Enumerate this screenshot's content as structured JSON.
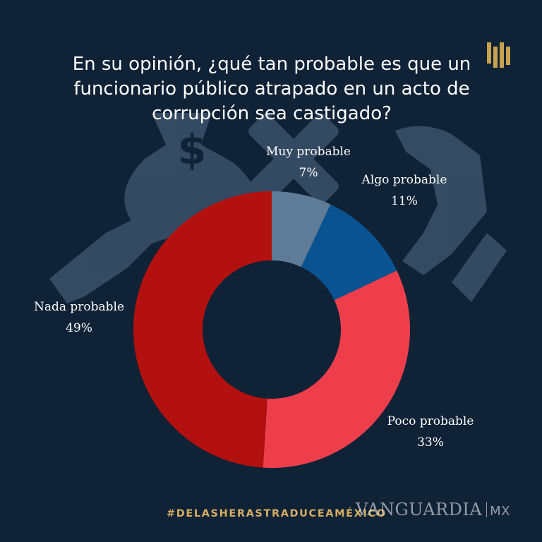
{
  "header": {
    "title": "En su opinión, ¿qué tan probable es que un funcionario público atrapado en un acto de corrupción sea castigado?"
  },
  "footer": {
    "hashtag": "#DELASHERASTRADUCEAMÉXICO",
    "brand_name": "VANGUARDIA",
    "brand_suffix": "MX"
  },
  "colors": {
    "background": "#0f2236",
    "hashtag": "#d6ad62",
    "logo": "#c9a24e"
  },
  "icons": [
    "money-bag-icon",
    "cross-icon",
    "hand-icon",
    "logo-icon"
  ],
  "chart_data": {
    "type": "pie",
    "variant": "donut",
    "categories": [
      "Muy probable",
      "Algo probable",
      "Poco probable",
      "Nada probable"
    ],
    "values": [
      7,
      11,
      33,
      49
    ],
    "value_labels": [
      "7%",
      "11%",
      "33%",
      "49%"
    ],
    "colors": [
      "#5e7b97",
      "#0a5392",
      "#ee3e4c",
      "#b3110f"
    ],
    "title": "En su opinión, ¿qué tan probable es que un funcionario público atrapado en un acto de corrupción sea castigado?",
    "legend": "none"
  }
}
